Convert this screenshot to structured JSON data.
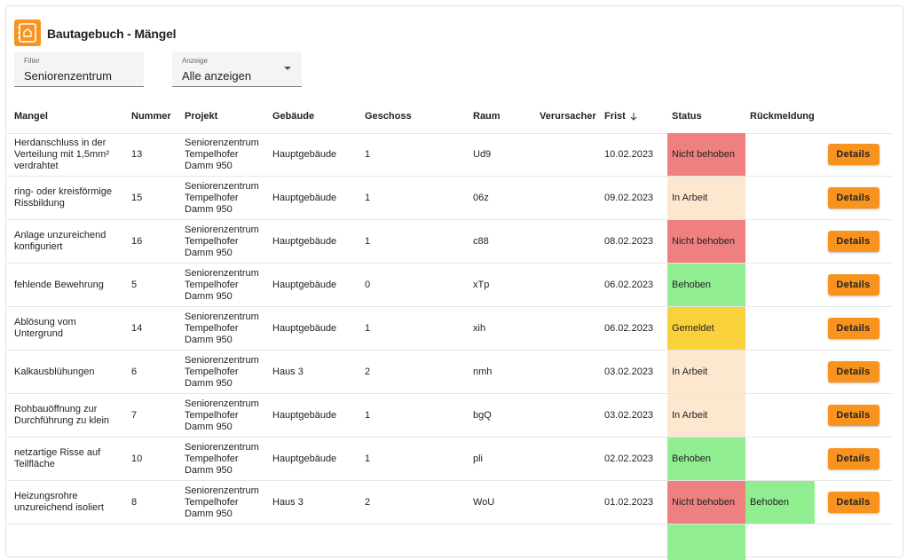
{
  "header": {
    "title": "Bautagebuch - Mängel"
  },
  "filters": [
    {
      "label": "Filter",
      "value": "Seniorenzentrum"
    },
    {
      "label": "Anzeige",
      "value": "Alle anzeigen"
    }
  ],
  "table": {
    "columns": [
      "Mangel",
      "Nummer",
      "Projekt",
      "Gebäude",
      "Geschoss",
      "Raum",
      "Verursacher",
      "Frist",
      "Status",
      "Rückmeldung"
    ],
    "action_label": "Details",
    "status_colors": {
      "Nicht behoben": "#ef8080",
      "In Arbeit": "#fde8cf",
      "Behoben": "#90ee90",
      "Gemeldet": "#f9d23b"
    },
    "rows": [
      {
        "mangel": "Herdanschluss in der Verteilung mit 1,5mm² verdrahtet",
        "nummer": 13,
        "projekt": "Seniorenzentrum Tempelhofer Damm 950",
        "gebaeude": "Hauptgebäude",
        "geschoss": 1,
        "raum": "Ud9",
        "frist": "10.02.2023",
        "status": "Nicht behoben"
      },
      {
        "mangel": "ring- oder kreisförmige Rissbildung",
        "nummer": 15,
        "projekt": "Seniorenzentrum Tempelhofer Damm 950",
        "gebaeude": "Hauptgebäude",
        "geschoss": 1,
        "raum": "06z",
        "frist": "09.02.2023",
        "status": "In Arbeit"
      },
      {
        "mangel": "Anlage unzureichend konfiguriert",
        "nummer": 16,
        "projekt": "Seniorenzentrum Tempelhofer Damm 950",
        "gebaeude": "Hauptgebäude",
        "geschoss": 1,
        "raum": "c88",
        "frist": "08.02.2023",
        "status": "Nicht behoben"
      },
      {
        "mangel": "fehlende Bewehrung",
        "nummer": 5,
        "projekt": "Seniorenzentrum Tempelhofer Damm 950",
        "gebaeude": "Hauptgebäude",
        "geschoss": 0,
        "raum": "xTp",
        "frist": "06.02.2023",
        "status": "Behoben"
      },
      {
        "mangel": "Ablösung vom Untergrund",
        "nummer": 14,
        "projekt": "Seniorenzentrum Tempelhofer Damm 950",
        "gebaeude": "Hauptgebäude",
        "geschoss": 1,
        "raum": "xih",
        "frist": "06.02.2023",
        "status": "Gemeldet"
      },
      {
        "mangel": "Kalkausblühungen",
        "nummer": 6,
        "projekt": "Seniorenzentrum Tempelhofer Damm 950",
        "gebaeude": "Haus 3",
        "geschoss": 2,
        "raum": "nmh",
        "frist": "03.02.2023",
        "status": "In Arbeit"
      },
      {
        "mangel": "Rohbauöffnung zur Durchführung zu klein",
        "nummer": 7,
        "projekt": "Seniorenzentrum Tempelhofer Damm 950",
        "gebaeude": "Hauptgebäude",
        "geschoss": 1,
        "raum": "bgQ",
        "frist": "03.02.2023",
        "status": "In Arbeit"
      },
      {
        "mangel": "netzartige Risse auf Teilfläche",
        "nummer": 10,
        "projekt": "Seniorenzentrum Tempelhofer Damm 950",
        "gebaeude": "Hauptgebäude",
        "geschoss": 1,
        "raum": "pli",
        "frist": "02.02.2023",
        "status": "Behoben"
      },
      {
        "mangel": "Heizungsrohre unzureichend isoliert",
        "nummer": 8,
        "projekt": "Seniorenzentrum Tempelhofer Damm 950",
        "gebaeude": "Haus 3",
        "geschoss": 2,
        "raum": "WoU",
        "frist": "01.02.2023",
        "status": "Nicht behoben",
        "rueckmeldung": "Behoben"
      }
    ]
  }
}
